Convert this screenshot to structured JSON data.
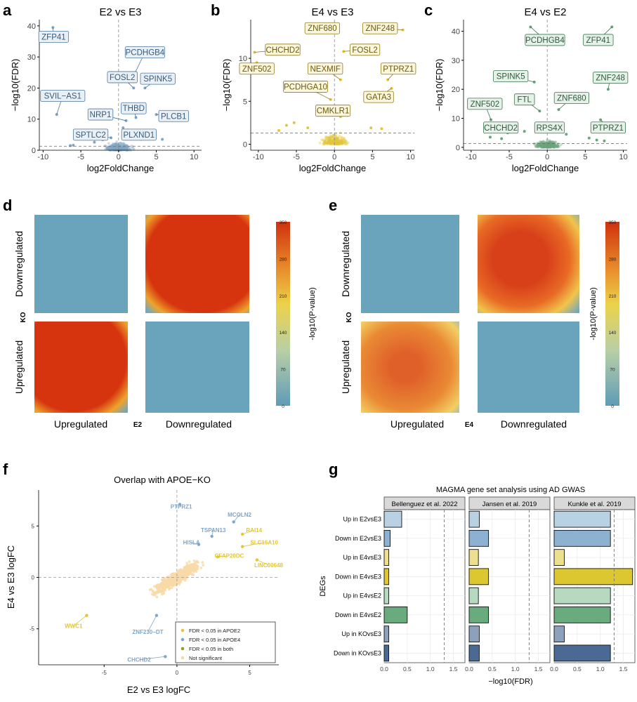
{
  "panel_letters": {
    "a": "a",
    "b": "b",
    "c": "c",
    "d": "d",
    "e": "e",
    "f": "f",
    "g": "g"
  },
  "colors": {
    "blue": "#7fa6c7",
    "blue_dark": "#4e77a0",
    "blue_fill": "#e8f0f6",
    "yellow": "#e3c53a",
    "yellow_dark": "#8f7a1e",
    "yellow_fill": "#fbf6dc",
    "green": "#6aa77b",
    "green_dark": "#3e7451",
    "green_fill": "#e6f1e8",
    "peach": "#f7d9a8",
    "heat_low": "#6ba3bd",
    "heat_high": "#d63a14"
  },
  "chart_data": [
    {
      "id": "a",
      "type": "scatter",
      "title": "E2 vs E3",
      "xlabel": "log2FoldChange",
      "ylabel": "−log10(FDR)",
      "xlim": [
        -10.5,
        11
      ],
      "ylim": [
        0,
        42
      ],
      "xticks": [
        -10,
        -5,
        0,
        5,
        10
      ],
      "yticks": [
        0,
        10,
        20,
        30,
        40
      ],
      "threshold_y": 1.3,
      "color": "#7fa6c7",
      "labels": [
        {
          "text": "ZFP41",
          "x": -8.7,
          "y": 39.5,
          "lx": -8.6,
          "ly": 36.5
        },
        {
          "text": "PCDHGB4",
          "x": 2.2,
          "y": 25,
          "lx": 3.5,
          "ly": 31.5
        },
        {
          "text": "FOSL2",
          "x": 2,
          "y": 20,
          "lx": 0.5,
          "ly": 23.5
        },
        {
          "text": "SPINK5",
          "x": 3.5,
          "y": 20,
          "lx": 5.2,
          "ly": 23
        },
        {
          "text": "SVIL−AS1",
          "x": -8.2,
          "y": 11.5,
          "lx": -7.4,
          "ly": 17.5
        },
        {
          "text": "THBD",
          "x": 2.3,
          "y": 10.5,
          "lx": 2,
          "ly": 13.5
        },
        {
          "text": "NRP1",
          "x": 1,
          "y": 9.5,
          "lx": -2.4,
          "ly": 11.5
        },
        {
          "text": "PLCB1",
          "x": 5,
          "y": 11.5,
          "lx": 7.3,
          "ly": 11
        },
        {
          "text": "SPTLC2",
          "x": -1,
          "y": 4,
          "lx": -3.7,
          "ly": 5
        },
        {
          "text": "PLXND1",
          "x": 1.5,
          "y": 5,
          "lx": 2.7,
          "ly": 5
        }
      ],
      "points": [
        [
          -8.7,
          39.5
        ],
        [
          -8.2,
          11.5
        ],
        [
          2.2,
          25
        ],
        [
          2,
          20
        ],
        [
          3.5,
          20
        ],
        [
          2.3,
          10.5
        ],
        [
          1,
          9.5
        ],
        [
          5,
          11.5
        ],
        [
          -1,
          4
        ],
        [
          1.5,
          5
        ],
        [
          3,
          3.5
        ],
        [
          5.8,
          3.5
        ],
        [
          -6,
          1.6
        ],
        [
          -6.4,
          1.5
        ],
        [
          -3.2,
          2.6
        ],
        [
          -2.1,
          3.4
        ],
        [
          0.6,
          7.2
        ],
        [
          1.2,
          6.5
        ]
      ]
    },
    {
      "id": "b",
      "type": "scatter",
      "title": "E4 vs E3",
      "xlabel": "log2FoldChange",
      "ylabel": "−log10(FDR)",
      "xlim": [
        -11,
        10.5
      ],
      "ylim": [
        -0.7,
        14.5
      ],
      "xticks": [
        -10,
        -5,
        0,
        5,
        10
      ],
      "yticks": [
        0,
        5,
        10
      ],
      "threshold_y": 1.3,
      "color": "#e3c53a",
      "labels": [
        {
          "text": "ZNF680",
          "x": 0.5,
          "y": 13.5,
          "lx": -1.6,
          "ly": 13.5
        },
        {
          "text": "ZNF248",
          "x": 9,
          "y": 13.3,
          "lx": 6,
          "ly": 13.5
        },
        {
          "text": "CHCHD2",
          "x": -10.5,
          "y": 10.7,
          "lx": -6.8,
          "ly": 11
        },
        {
          "text": "FOSL2",
          "x": 1.2,
          "y": 10.8,
          "lx": 4,
          "ly": 11
        },
        {
          "text": "ZNF502",
          "x": -10.2,
          "y": 9.5,
          "lx": -10.2,
          "ly": 8.8
        },
        {
          "text": "NEXMIF",
          "x": 0.8,
          "y": 7.5,
          "lx": -1.2,
          "ly": 8.8
        },
        {
          "text": "PTPRZ1",
          "x": 7,
          "y": 7.5,
          "lx": 8.4,
          "ly": 8.8
        },
        {
          "text": "PCDHGA10",
          "x": -0.5,
          "y": 5.2,
          "lx": -3.8,
          "ly": 6.7
        },
        {
          "text": "GATA3",
          "x": 7.5,
          "y": 6.5,
          "lx": 5.8,
          "ly": 5.5
        },
        {
          "text": "CMKLR1",
          "x": 0.8,
          "y": 3.2,
          "lx": -0.2,
          "ly": 3.9
        }
      ],
      "points": [
        [
          0.5,
          13.5
        ],
        [
          9,
          13.3
        ],
        [
          -10.5,
          10.7
        ],
        [
          1.2,
          10.8
        ],
        [
          -10.2,
          9.5
        ],
        [
          0.8,
          7.5
        ],
        [
          7,
          7.5
        ],
        [
          -0.5,
          5.2
        ],
        [
          7.5,
          6.5
        ],
        [
          0.8,
          3.2
        ],
        [
          -6.3,
          2.2
        ],
        [
          -5.3,
          2.5
        ],
        [
          -3.5,
          1.9
        ],
        [
          4.8,
          1.9
        ],
        [
          6.2,
          1.8
        ],
        [
          -7.3,
          1.6
        ]
      ]
    },
    {
      "id": "c",
      "type": "scatter",
      "title": "E4 vs E2",
      "xlabel": "log2FoldChange",
      "ylabel": "−log10(FDR)",
      "xlim": [
        -11,
        10.5
      ],
      "ylim": [
        -1,
        44
      ],
      "xticks": [
        -10,
        -5,
        0,
        5,
        10
      ],
      "yticks": [
        0,
        10,
        20,
        30,
        40
      ],
      "threshold_y": 1.3,
      "color": "#6aa77b",
      "labels": [
        {
          "text": "PCDHGB4",
          "x": -2.2,
          "y": 41.5,
          "lx": -0.3,
          "ly": 37
        },
        {
          "text": "ZFP41",
          "x": 8.5,
          "y": 41.5,
          "lx": 6.7,
          "ly": 37
        },
        {
          "text": "SPINK5",
          "x": -1.7,
          "y": 22.5,
          "lx": -4.8,
          "ly": 24.5
        },
        {
          "text": "ZNF248",
          "x": 8,
          "y": 20,
          "lx": 8.3,
          "ly": 24
        },
        {
          "text": "FTL",
          "x": -1,
          "y": 12.5,
          "lx": -3,
          "ly": 16.5
        },
        {
          "text": "ZNF680",
          "x": 1.5,
          "y": 13,
          "lx": 3.2,
          "ly": 17
        },
        {
          "text": "ZNF502",
          "x": -7.4,
          "y": 9.5,
          "lx": -8.2,
          "ly": 15
        },
        {
          "text": "CHCHD2",
          "x": -4.5,
          "y": 6.2,
          "lx": -6.1,
          "ly": 6.8
        },
        {
          "text": "RPS4X",
          "x": 0.5,
          "y": 8,
          "lx": 0.3,
          "ly": 6.8
        },
        {
          "text": "PTPRZ1",
          "x": 7,
          "y": 9.5,
          "lx": 8,
          "ly": 6.8
        }
      ],
      "points": [
        [
          -2.2,
          41.5
        ],
        [
          8.5,
          41.5
        ],
        [
          -1.7,
          22.5
        ],
        [
          8,
          20
        ],
        [
          -1,
          12.5
        ],
        [
          1.5,
          13
        ],
        [
          -7.4,
          9.5
        ],
        [
          -4.5,
          6.2
        ],
        [
          0.5,
          8
        ],
        [
          7,
          9.5
        ],
        [
          -7.5,
          3.5
        ],
        [
          -6,
          3
        ],
        [
          -5.2,
          5
        ],
        [
          6.5,
          2.5
        ],
        [
          7.5,
          2.2
        ],
        [
          5.5,
          3.2
        ],
        [
          -3,
          5.5
        ],
        [
          2.5,
          4.5
        ]
      ]
    },
    {
      "id": "d",
      "type": "heatmap",
      "colorbar_label": "-log10(P-value)",
      "colorbar_ticks": [
        0,
        70,
        140,
        210,
        280,
        350
      ],
      "row_labels": [
        "Downregulated",
        "Upregulated"
      ],
      "col_labels": [
        "Upregulated",
        "Downregulated"
      ],
      "y_axis": "KO",
      "x_axis": "E2",
      "quadrants": [
        {
          "row": "Downregulated",
          "col": "Upregulated",
          "level": "low"
        },
        {
          "row": "Downregulated",
          "col": "Downregulated",
          "level": "high"
        },
        {
          "row": "Upregulated",
          "col": "Upregulated",
          "level": "high"
        },
        {
          "row": "Upregulated",
          "col": "Downregulated",
          "level": "low"
        }
      ]
    },
    {
      "id": "e",
      "type": "heatmap",
      "colorbar_label": "-log10(P-value)",
      "colorbar_ticks": [
        0,
        70,
        140,
        210,
        280,
        350
      ],
      "row_labels": [
        "Downregulated",
        "Upregulated"
      ],
      "col_labels": [
        "Upregulated",
        "Downregulated"
      ],
      "y_axis": "KO",
      "x_axis": "E4",
      "quadrants": [
        {
          "row": "Downregulated",
          "col": "Upregulated",
          "level": "low"
        },
        {
          "row": "Downregulated",
          "col": "Downregulated",
          "level": "high"
        },
        {
          "row": "Upregulated",
          "col": "Upregulated",
          "level": "medium"
        },
        {
          "row": "Upregulated",
          "col": "Downregulated",
          "level": "low"
        }
      ]
    },
    {
      "id": "f",
      "type": "scatter",
      "title": "Overlap with APOE−KO",
      "xlabel": "E2 vs E3 logFC",
      "ylabel": "E4 vs E3 logFC",
      "xlim": [
        -9.5,
        7
      ],
      "ylim": [
        -8.5,
        8.5
      ],
      "xticks": [
        -5,
        0,
        5
      ],
      "yticks": [
        -5,
        0,
        5
      ],
      "legend": [
        {
          "label": "FDR < 0.05 in APOE2",
          "color": "#e3c53a"
        },
        {
          "label": "FDR < 0.05 in APOE4",
          "color": "#7fa6c7"
        },
        {
          "label": "FDR < 0.05 in both",
          "color": "#9a9a1e"
        },
        {
          "label": "Not significant",
          "color": "#f7d9a8"
        }
      ],
      "labels": [
        {
          "text": "PTPRZ1",
          "x": 0.2,
          "y": 7.1,
          "lx": 0.3,
          "ly": 6.9,
          "c": "#7fa6c7"
        },
        {
          "text": "MCOLN2",
          "x": 3.9,
          "y": 5.4,
          "lx": 4.3,
          "ly": 6.1,
          "c": "#7fa6c7"
        },
        {
          "text": "TSPAN13",
          "x": 2.4,
          "y": 4.0,
          "lx": 2.5,
          "ly": 4.6,
          "c": "#7fa6c7"
        },
        {
          "text": "RAI14",
          "x": 4.5,
          "y": 4.2,
          "lx": 5.3,
          "ly": 4.6,
          "c": "#e3c53a"
        },
        {
          "text": "HISLA",
          "x": 1.5,
          "y": 3.2,
          "lx": 1.0,
          "ly": 3.4,
          "c": "#7fa6c7"
        },
        {
          "text": "SLC16A10",
          "x": 4.5,
          "y": 3.0,
          "lx": 6.0,
          "ly": 3.4,
          "c": "#e3c53a"
        },
        {
          "text": "CFAP20DC",
          "x": 2.8,
          "y": 2.0,
          "lx": 3.6,
          "ly": 2.1,
          "c": "#e3c53a"
        },
        {
          "text": "LINC00648",
          "x": 5.5,
          "y": 1.7,
          "lx": 6.3,
          "ly": 1.2,
          "c": "#e3c53a"
        },
        {
          "text": "WWC1",
          "x": -6.2,
          "y": -3.7,
          "lx": -7.1,
          "ly": -4.7,
          "c": "#e3c53a"
        },
        {
          "text": "ZNF230−DT",
          "x": -1.4,
          "y": -3.7,
          "lx": -2.0,
          "ly": -5.3,
          "c": "#7fa6c7"
        },
        {
          "text": "CHCHD2",
          "x": -0.8,
          "y": -7.7,
          "lx": -2.6,
          "ly": -8.0,
          "c": "#7fa6c7"
        }
      ]
    },
    {
      "id": "g",
      "type": "bar",
      "title": "MAGMA gene set analysis using AD GWAS",
      "xlabel": "−log10(FDR)",
      "ylabel": "DEGs",
      "xlim": [
        0,
        1.75
      ],
      "xticks": [
        0,
        0.5,
        1,
        1.5
      ],
      "xtick_labels": [
        "0.0",
        "0.5",
        "1.0",
        "1.5"
      ],
      "threshold_x": 1.3,
      "categories": [
        "Up in E2vsE3",
        "Down in E2vsE3",
        "Up in E4vsE3",
        "Down in E4vsE3",
        "Up in E4vsE2",
        "Down in E4vsE2",
        "Up in KOvsE3",
        "Down in KOvsE3"
      ],
      "bar_colors": [
        "#b9d2e3",
        "#8db1d1",
        "#ece08e",
        "#ddc730",
        "#b7d9bf",
        "#6aab7e",
        "#8ea1bc",
        "#4b6a93"
      ],
      "facets": [
        {
          "name": "Bellenguez et al. 2022",
          "values": [
            0.38,
            0.13,
            0.1,
            0.1,
            0.1,
            0.5,
            0.1,
            0.1
          ]
        },
        {
          "name": "Jansen et al. 2019",
          "values": [
            0.22,
            0.42,
            0.2,
            0.42,
            0.2,
            0.42,
            0.22,
            0.22
          ]
        },
        {
          "name": "Kunkle et al. 2019",
          "values": [
            1.22,
            1.22,
            0.22,
            1.7,
            1.22,
            1.22,
            0.22,
            1.22
          ]
        }
      ]
    }
  ]
}
